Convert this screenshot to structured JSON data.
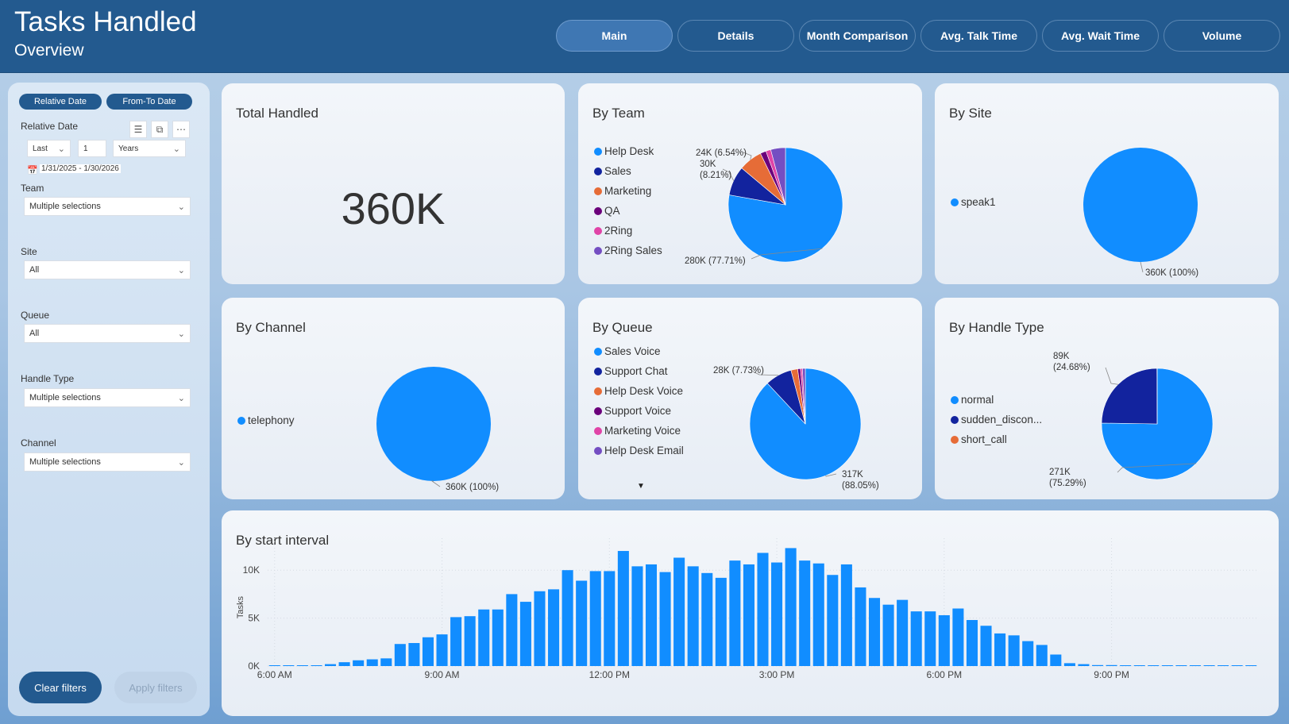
{
  "header": {
    "title": "Tasks Handled",
    "subtitle": "Overview",
    "nav": [
      "Main",
      "Details",
      "Month Comparison",
      "Avg. Talk Time",
      "Avg. Wait Time",
      "Volume"
    ]
  },
  "filters": {
    "tabs": [
      "Relative Date",
      "From-To Date"
    ],
    "relative_date": {
      "label": "Relative Date",
      "period": "Last",
      "count": "1",
      "unit": "Years",
      "range": "1/31/2025 - 1/30/2026"
    },
    "team": {
      "label": "Team",
      "value": "Multiple selections"
    },
    "site": {
      "label": "Site",
      "value": "All"
    },
    "queue": {
      "label": "Queue",
      "value": "All"
    },
    "handle_type": {
      "label": "Handle Type",
      "value": "Multiple selections"
    },
    "channel": {
      "label": "Channel",
      "value": "Multiple selections"
    },
    "clear_label": "Clear filters",
    "apply_label": "Apply filters"
  },
  "colors": {
    "header": "#235a8f",
    "primary_blue": "#118dff",
    "navy": "#12239e",
    "orange": "#e66c37",
    "purple": "#6b007b",
    "pink": "#e044a7",
    "violet": "#744ec2"
  },
  "cards": {
    "total": {
      "title": "Total Handled",
      "value": "360K"
    },
    "team": {
      "title": "By Team"
    },
    "site": {
      "title": "By Site"
    },
    "channel": {
      "title": "By Channel"
    },
    "queue": {
      "title": "By Queue"
    },
    "handle": {
      "title": "By Handle Type"
    },
    "interval": {
      "title": "By start interval"
    }
  },
  "chart_data": [
    {
      "type": "pie",
      "title": "By Team",
      "legend": "left",
      "labels": [
        "Help Desk",
        "Sales",
        "Marketing",
        "QA",
        "2Ring",
        "2Ring Sales"
      ],
      "values": [
        280,
        30,
        24,
        6,
        5,
        15
      ],
      "data_labels": {
        "Help Desk": "280K (77.71%)",
        "Sales": "30K (8.21%)",
        "Marketing": "24K (6.54%)"
      }
    },
    {
      "type": "pie",
      "title": "By Site",
      "legend": "left",
      "labels": [
        "speak1"
      ],
      "values": [
        360
      ],
      "data_labels": {
        "speak1": "360K (100%)"
      }
    },
    {
      "type": "pie",
      "title": "By Channel",
      "legend": "left",
      "labels": [
        "telephony"
      ],
      "values": [
        360
      ],
      "data_labels": {
        "telephony": "360K (100%)"
      }
    },
    {
      "type": "pie",
      "title": "By Queue",
      "legend": "left",
      "labels": [
        "Sales Voice",
        "Support Chat",
        "Help Desk Voice",
        "Support Voice",
        "Marketing Voice",
        "Help Desk Email"
      ],
      "values": [
        317,
        28,
        7,
        3,
        2,
        3
      ],
      "data_labels": {
        "Sales Voice": "317K (88.05%)",
        "Support Chat": "28K (7.73%)"
      }
    },
    {
      "type": "pie",
      "title": "By Handle Type",
      "legend": "left",
      "labels": [
        "normal",
        "sudden_discon...",
        "short_call"
      ],
      "values": [
        271,
        89,
        0.2
      ],
      "data_labels": {
        "normal": "271K (75.29%)",
        "sudden_discon...": "89K (24.68%)"
      }
    },
    {
      "type": "bar",
      "title": "By start interval",
      "ylabel": "Tasks",
      "yticks": [
        "0K",
        "5K",
        "10K"
      ],
      "ylim": [
        0,
        12500
      ],
      "xticks": [
        "6:00 AM",
        "9:00 AM",
        "12:00 PM",
        "3:00 PM",
        "6:00 PM",
        "9:00 PM"
      ],
      "x_start": "6:00 AM",
      "interval_minutes": 15,
      "values": [
        50,
        50,
        0,
        50,
        200,
        400,
        600,
        700,
        800,
        2300,
        2400,
        3000,
        3300,
        5100,
        5200,
        5900,
        5900,
        7500,
        6700,
        7800,
        8000,
        10000,
        8900,
        9900,
        9900,
        12000,
        10400,
        10600,
        9800,
        11300,
        10400,
        9700,
        9200,
        11000,
        10600,
        11800,
        10800,
        12300,
        11000,
        10700,
        9500,
        10600,
        8200,
        7100,
        6400,
        6900,
        5700,
        5700,
        5300,
        6000,
        4800,
        4200,
        3400,
        3200,
        2600,
        2200,
        1200,
        300,
        200,
        100,
        100,
        50,
        50,
        50,
        50,
        50,
        50,
        50,
        50,
        50,
        50
      ]
    }
  ]
}
